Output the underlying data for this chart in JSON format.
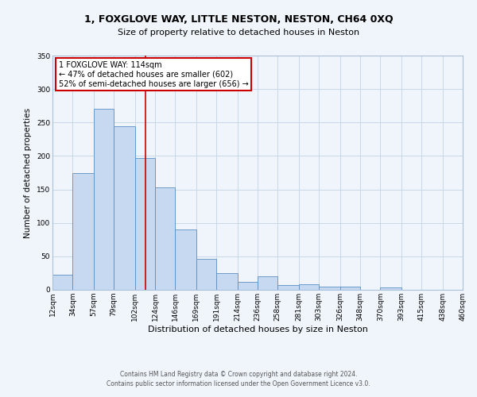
{
  "title": "1, FOXGLOVE WAY, LITTLE NESTON, NESTON, CH64 0XQ",
  "subtitle": "Size of property relative to detached houses in Neston",
  "xlabel": "Distribution of detached houses by size in Neston",
  "ylabel": "Number of detached properties",
  "footnote1": "Contains HM Land Registry data © Crown copyright and database right 2024.",
  "footnote2": "Contains public sector information licensed under the Open Government Licence v3.0.",
  "bar_left_edges": [
    12,
    34,
    57,
    79,
    102,
    124,
    146,
    169,
    191,
    214,
    236,
    258,
    281,
    303,
    326,
    348,
    370,
    393,
    415,
    438
  ],
  "bar_widths": [
    22,
    23,
    22,
    23,
    22,
    22,
    23,
    22,
    23,
    22,
    22,
    23,
    22,
    23,
    22,
    22,
    23,
    22,
    23,
    22
  ],
  "bar_heights": [
    23,
    175,
    270,
    245,
    197,
    153,
    90,
    46,
    25,
    12,
    20,
    7,
    8,
    5,
    5,
    0,
    4,
    0,
    0,
    0
  ],
  "bar_color": "#c6d9f0",
  "bar_edge_color": "#5a8fc3",
  "vline_x": 114,
  "vline_color": "#cc0000",
  "ylim": [
    0,
    350
  ],
  "xlim": [
    12,
    460
  ],
  "yticks": [
    0,
    50,
    100,
    150,
    200,
    250,
    300,
    350
  ],
  "xtick_labels": [
    "12sqm",
    "34sqm",
    "57sqm",
    "79sqm",
    "102sqm",
    "124sqm",
    "146sqm",
    "169sqm",
    "191sqm",
    "214sqm",
    "236sqm",
    "258sqm",
    "281sqm",
    "303sqm",
    "326sqm",
    "348sqm",
    "370sqm",
    "393sqm",
    "415sqm",
    "438sqm",
    "460sqm"
  ],
  "xtick_positions": [
    12,
    34,
    57,
    79,
    102,
    124,
    146,
    169,
    191,
    214,
    236,
    258,
    281,
    303,
    326,
    348,
    370,
    393,
    415,
    438,
    460
  ],
  "annotation_title": "1 FOXGLOVE WAY: 114sqm",
  "annotation_line1": "← 47% of detached houses are smaller (602)",
  "annotation_line2": "52% of semi-detached houses are larger (656) →",
  "annotation_box_color": "#ffffff",
  "annotation_box_edge": "#cc0000",
  "grid_color": "#c8d8e8",
  "bg_color": "#f0f5fb",
  "title_fontsize": 9,
  "subtitle_fontsize": 8,
  "xlabel_fontsize": 8,
  "ylabel_fontsize": 7.5,
  "tick_fontsize": 6.5,
  "annotation_fontsize": 7,
  "footnote_fontsize": 5.5
}
